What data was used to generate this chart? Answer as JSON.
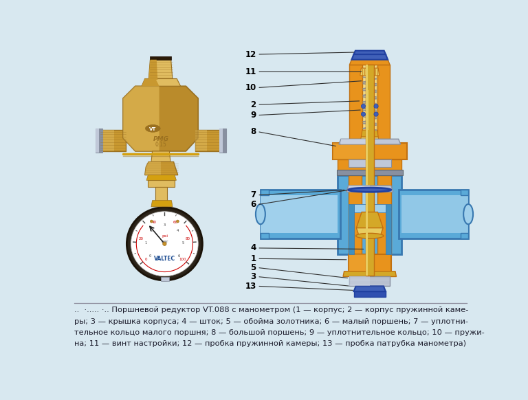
{
  "background_color": "#d8e8f0",
  "caption_lines": [
    "..  ·..... ·.. Поршневой редуктор VT.088 с манометром (1 — корпус; 2 — корпус пружинной каме-",
    "ры; 3 — крышка корпуса; 4 — шток; 5 — обойма золотника; 6 — малый поршень; 7 — уплотни-",
    "тельное кольцо малого поршня; 8 — большой поршень; 9 — уплотнительное кольцо; 10 — пружи-",
    "на; 11 — винт настройки; 12 — пробка пружинной камеры; 13 — пробка патрубка манометра)"
  ],
  "orange": "#E8931C",
  "orange_dark": "#C07010",
  "orange_light": "#F0B040",
  "blue_body": "#5AAAD8",
  "blue_light": "#A0D0EC",
  "blue_dark": "#3878B0",
  "blue_cap": "#4060B8",
  "gold": "#D4A828",
  "gold_light": "#E8CC60",
  "silver": "#C0C8D8",
  "silver_dark": "#8890A0",
  "brass": "#C89830",
  "brass_light": "#E0BC60",
  "brass_dark": "#9A7020",
  "dark_navy": "#1A2A50"
}
